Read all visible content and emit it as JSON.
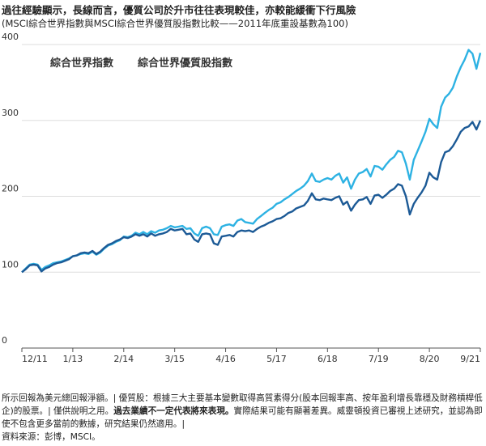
{
  "chart_data": {
    "type": "line",
    "title": "過往經驗顯示，長線而言，優質公司於升市往往表現較佳，亦較能緩衝下行風險",
    "subtitle": "(MSCI綜合世界指數與MSCI綜合世界優質股指數比較——2011年底重設基數為100)",
    "categories": [
      "12/11",
      null,
      null,
      null,
      null,
      null,
      null,
      null,
      null,
      null,
      null,
      null,
      null,
      "1/13",
      null,
      null,
      null,
      null,
      null,
      null,
      null,
      null,
      null,
      null,
      null,
      null,
      "2/14",
      null,
      null,
      null,
      null,
      null,
      null,
      null,
      null,
      null,
      null,
      null,
      null,
      "3/15",
      null,
      null,
      null,
      null,
      null,
      null,
      null,
      null,
      null,
      null,
      null,
      null,
      "4/16",
      null,
      null,
      null,
      null,
      null,
      null,
      null,
      null,
      null,
      null,
      null,
      null,
      "5/17",
      null,
      null,
      null,
      null,
      null,
      null,
      null,
      null,
      null,
      null,
      null,
      null,
      "6/18",
      null,
      null,
      null,
      null,
      null,
      null,
      null,
      null,
      null,
      null,
      null,
      null,
      "7/19",
      null,
      null,
      null,
      null,
      null,
      null,
      null,
      null,
      null,
      null,
      null,
      null,
      "8/20",
      null,
      null,
      null,
      null,
      null,
      null,
      null,
      null,
      null,
      null,
      null,
      null,
      "9/21"
    ],
    "series": [
      {
        "name": "綜合世界指數",
        "color": "#1c5a96",
        "values": [
          100,
          104,
          109,
          110,
          109,
          101,
          105,
          107,
          110,
          112,
          113,
          115,
          117,
          121,
          122,
          125,
          126,
          125,
          128,
          124,
          127,
          132,
          136,
          138,
          141,
          143,
          146,
          145,
          147,
          150,
          148,
          150,
          147,
          151,
          148,
          150,
          151,
          153,
          157,
          155,
          156,
          157,
          150,
          151,
          143,
          140,
          150,
          151,
          150,
          138,
          136,
          147,
          148,
          149,
          147,
          153,
          155,
          154,
          155,
          153,
          157,
          160,
          162,
          165,
          167,
          170,
          171,
          174,
          178,
          180,
          184,
          186,
          188,
          194,
          204,
          196,
          195,
          197,
          196,
          195,
          198,
          200,
          189,
          193,
          181,
          189,
          195,
          196,
          199,
          190,
          201,
          202,
          198,
          202,
          207,
          210,
          216,
          214,
          200,
          176,
          190,
          198,
          205,
          214,
          231,
          225,
          222,
          245,
          258,
          260,
          266,
          275,
          285,
          290,
          292,
          298,
          288,
          300
        ]
      },
      {
        "name": "綜合世界優質股指數",
        "color": "#2db2e3",
        "values": [
          100,
          105,
          110,
          111,
          110,
          103,
          107,
          109,
          112,
          113,
          114,
          116,
          118,
          121,
          122,
          124,
          125,
          124,
          127,
          123,
          126,
          131,
          135,
          137,
          140,
          142,
          147,
          146,
          148,
          152,
          150,
          153,
          150,
          154,
          152,
          155,
          156,
          158,
          161,
          159,
          160,
          161,
          157,
          158,
          151,
          148,
          158,
          160,
          158,
          150,
          149,
          160,
          162,
          163,
          161,
          168,
          170,
          166,
          165,
          164,
          170,
          174,
          178,
          182,
          185,
          190,
          192,
          196,
          199,
          203,
          207,
          210,
          214,
          220,
          230,
          220,
          219,
          222,
          224,
          222,
          227,
          230,
          218,
          225,
          210,
          222,
          230,
          232,
          236,
          226,
          240,
          239,
          235,
          242,
          248,
          252,
          260,
          258,
          243,
          222,
          248,
          260,
          272,
          285,
          302,
          295,
          290,
          318,
          330,
          335,
          343,
          358,
          370,
          380,
          393,
          388,
          368,
          389
        ]
      }
    ],
    "ylim": [
      0,
      400
    ],
    "yticks": [
      0,
      100,
      200,
      300,
      400
    ],
    "grid": true,
    "notes": [
      "所示回報為美元總回報淨額。| 優質股：根據三大主要基本變數取得高質素得分(股本回報率高、按年盈利增長靠穩及財務槓桿低企)的股票。| 僅供說明之用。",
      "過去業績不一定代表將來表現。",
      "實際結果可能有顯著差異。威靈頓投資已審視上述研究，並認為即使不包含更多當前的數據，研究結果仍然適用。|",
      "資料來源：彭博，MSCI。"
    ]
  }
}
